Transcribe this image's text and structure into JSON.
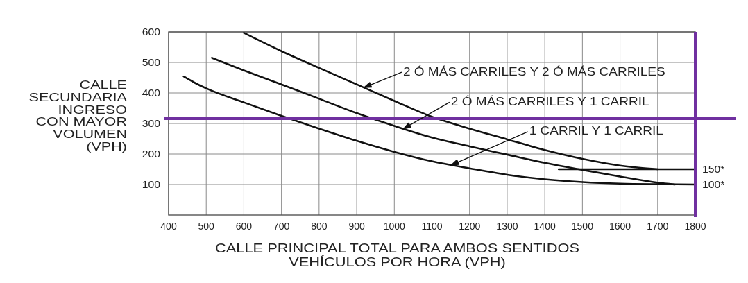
{
  "chart_data": {
    "type": "line",
    "xlabel": "CALLE PRINCIPAL TOTAL PARA AMBOS SENTIDOS\nVEHÍCULOS POR HORA (VPH)",
    "ylabel": "CALLE\nSECUNDARIA\nINGRESO\nCON MAYOR\nVOLUMEN\n(VPH)",
    "xlim": [
      400,
      1800
    ],
    "xticks": [
      400,
      500,
      600,
      700,
      800,
      900,
      1000,
      1100,
      1200,
      1300,
      1400,
      1500,
      1600,
      1700,
      1800
    ],
    "ylim": [
      0,
      600
    ],
    "yticks": [
      100,
      200,
      300,
      400,
      500,
      600
    ],
    "grid": true,
    "line_style": "solid",
    "series": [
      {
        "color": "#111111",
        "x": [
          600,
          700,
          800,
          900,
          1000,
          1100,
          1200,
          1300,
          1400,
          1500,
          1600,
          1650,
          1700
        ],
        "values": [
          597,
          537,
          482,
          428,
          374,
          322,
          283,
          248,
          213,
          184,
          162,
          155,
          150
        ]
      },
      {
        "color": "#111111",
        "x": [
          515,
          600,
          700,
          800,
          900,
          1000,
          1100,
          1200,
          1300,
          1400,
          1500,
          1600,
          1700,
          1745
        ],
        "values": [
          515,
          474,
          428,
          381,
          334,
          292,
          254,
          225,
          198,
          171,
          148,
          126,
          106,
          100
        ]
      },
      {
        "color": "#111111",
        "x": [
          440,
          470,
          500,
          600,
          700,
          800,
          900,
          1000,
          1100,
          1200,
          1300,
          1400,
          1500,
          1600,
          1700,
          1800
        ],
        "values": [
          454,
          433,
          415,
          369,
          325,
          283,
          243,
          207,
          176,
          153,
          132,
          117,
          108,
          103,
          101,
          100
        ]
      },
      {
        "color": "#111111",
        "x": [
          1437,
          1800
        ],
        "values": [
          150,
          150
        ]
      }
    ],
    "ref_lines": [
      {
        "axis": "y",
        "value": 316,
        "color": "#7030a0"
      },
      {
        "axis": "x",
        "value": 1800,
        "color": "#7030a0"
      }
    ],
    "annotations": [
      {
        "text": "2 Ó MÁS CARRILES Y 2 Ó MÁS CARRILES",
        "x": 920,
        "y": 418
      },
      {
        "text": "2 Ó MÁS CARRILES Y 1 CARRIL",
        "x": 1025,
        "y": 283
      },
      {
        "text": "1 CARRIL Y 1 CARRIL",
        "x": 1152,
        "y": 164
      },
      {
        "text": "150*",
        "x": 1800,
        "y": 150
      },
      {
        "text": "100*",
        "x": 1800,
        "y": 100
      }
    ]
  }
}
